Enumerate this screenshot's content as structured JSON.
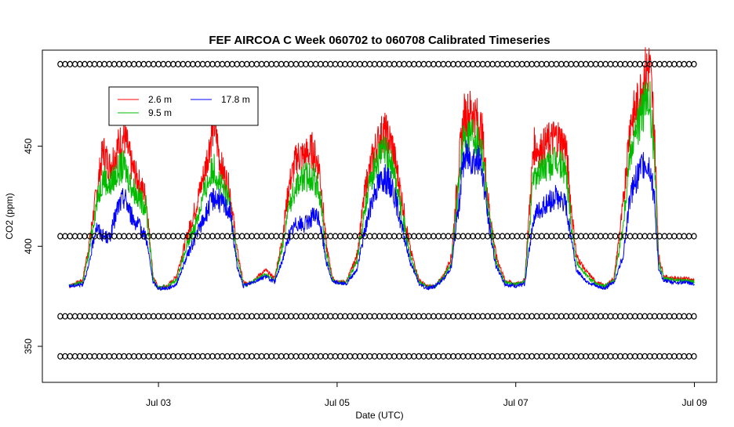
{
  "chart_data": {
    "type": "line",
    "title": "FEF AIRCOA C  Week 060702 to 060708  Calibrated Timeseries",
    "xlabel": "Date (UTC)",
    "ylabel": "CO2 (ppm)",
    "x_ticks": [
      "Jul 03",
      "Jul 05",
      "Jul 07",
      "Jul 09"
    ],
    "x_tick_days": [
      1,
      3,
      5,
      7
    ],
    "xlim_days": [
      -0.3,
      7.25
    ],
    "y_ticks": [
      350,
      400,
      450
    ],
    "ylim": [
      332,
      498
    ],
    "legend": {
      "placement": "top-left",
      "entries": [
        {
          "label": "2.6 m",
          "color": "#ff0000"
        },
        {
          "label": "9.5 m",
          "color": "#00bb00"
        },
        {
          "label": "17.8 m",
          "color": "#0000ff"
        }
      ]
    },
    "series": [
      {
        "name": "2.6 m",
        "color": "#ff0000",
        "day_pts": [
          [
            0.0,
            380
          ],
          [
            0.15,
            383
          ],
          [
            0.22,
            400
          ],
          [
            0.3,
            425
          ],
          [
            0.38,
            448
          ],
          [
            0.45,
            440
          ],
          [
            0.55,
            450
          ],
          [
            0.62,
            455
          ],
          [
            0.7,
            440
          ],
          [
            0.78,
            432
          ],
          [
            0.86,
            425
          ],
          [
            0.94,
            385
          ],
          [
            1.0,
            379
          ],
          [
            1.1,
            380
          ],
          [
            1.2,
            385
          ],
          [
            1.32,
            405
          ],
          [
            1.42,
            420
          ],
          [
            1.52,
            438
          ],
          [
            1.62,
            462
          ],
          [
            1.7,
            440
          ],
          [
            1.8,
            428
          ],
          [
            1.88,
            398
          ],
          [
            1.95,
            382
          ],
          [
            2.0,
            381
          ],
          [
            2.2,
            388
          ],
          [
            2.3,
            384
          ],
          [
            2.38,
            402
          ],
          [
            2.46,
            430
          ],
          [
            2.55,
            445
          ],
          [
            2.63,
            445
          ],
          [
            2.72,
            448
          ],
          [
            2.8,
            440
          ],
          [
            2.88,
            400
          ],
          [
            2.95,
            384
          ],
          [
            3.0,
            382
          ],
          [
            3.1,
            382
          ],
          [
            3.22,
            395
          ],
          [
            3.32,
            430
          ],
          [
            3.42,
            448
          ],
          [
            3.52,
            458
          ],
          [
            3.62,
            450
          ],
          [
            3.72,
            425
          ],
          [
            3.82,
            398
          ],
          [
            3.92,
            383
          ],
          [
            4.0,
            380
          ],
          [
            4.1,
            380
          ],
          [
            4.2,
            386
          ],
          [
            4.28,
            395
          ],
          [
            4.36,
            440
          ],
          [
            4.42,
            465
          ],
          [
            4.52,
            468
          ],
          [
            4.62,
            458
          ],
          [
            4.7,
            420
          ],
          [
            4.78,
            395
          ],
          [
            4.88,
            383
          ],
          [
            5.0,
            381
          ],
          [
            5.1,
            383
          ],
          [
            5.2,
            450
          ],
          [
            5.28,
            448
          ],
          [
            5.36,
            452
          ],
          [
            5.46,
            455
          ],
          [
            5.56,
            450
          ],
          [
            5.62,
            420
          ],
          [
            5.68,
            395
          ],
          [
            5.78,
            388
          ],
          [
            5.9,
            382
          ],
          [
            6.0,
            380
          ],
          [
            6.1,
            384
          ],
          [
            6.2,
            420
          ],
          [
            6.28,
            462
          ],
          [
            6.36,
            470
          ],
          [
            6.44,
            485
          ],
          [
            6.5,
            490
          ],
          [
            6.55,
            460
          ],
          [
            6.6,
            395
          ],
          [
            6.66,
            385
          ],
          [
            6.75,
            384
          ],
          [
            6.9,
            384
          ],
          [
            7.0,
            383
          ]
        ]
      },
      {
        "name": "9.5 m",
        "color": "#00bb00",
        "day_pts": [
          [
            0.0,
            380
          ],
          [
            0.15,
            382
          ],
          [
            0.22,
            396
          ],
          [
            0.3,
            420
          ],
          [
            0.38,
            435
          ],
          [
            0.45,
            430
          ],
          [
            0.55,
            438
          ],
          [
            0.62,
            440
          ],
          [
            0.7,
            430
          ],
          [
            0.78,
            424
          ],
          [
            0.86,
            420
          ],
          [
            0.94,
            384
          ],
          [
            1.0,
            379
          ],
          [
            1.1,
            380
          ],
          [
            1.2,
            383
          ],
          [
            1.32,
            400
          ],
          [
            1.42,
            412
          ],
          [
            1.52,
            428
          ],
          [
            1.62,
            440
          ],
          [
            1.7,
            430
          ],
          [
            1.8,
            422
          ],
          [
            1.88,
            394
          ],
          [
            1.95,
            381
          ],
          [
            2.0,
            381
          ],
          [
            2.2,
            386
          ],
          [
            2.3,
            383
          ],
          [
            2.38,
            398
          ],
          [
            2.46,
            420
          ],
          [
            2.55,
            432
          ],
          [
            2.63,
            434
          ],
          [
            2.72,
            436
          ],
          [
            2.8,
            428
          ],
          [
            2.88,
            396
          ],
          [
            2.95,
            383
          ],
          [
            3.0,
            382
          ],
          [
            3.1,
            382
          ],
          [
            3.22,
            392
          ],
          [
            3.32,
            422
          ],
          [
            3.42,
            440
          ],
          [
            3.52,
            448
          ],
          [
            3.62,
            440
          ],
          [
            3.72,
            418
          ],
          [
            3.82,
            395
          ],
          [
            3.92,
            382
          ],
          [
            4.0,
            380
          ],
          [
            4.1,
            380
          ],
          [
            4.2,
            385
          ],
          [
            4.28,
            392
          ],
          [
            4.36,
            430
          ],
          [
            4.42,
            455
          ],
          [
            4.52,
            458
          ],
          [
            4.62,
            450
          ],
          [
            4.7,
            415
          ],
          [
            4.78,
            392
          ],
          [
            4.88,
            382
          ],
          [
            5.0,
            381
          ],
          [
            5.1,
            382
          ],
          [
            5.2,
            435
          ],
          [
            5.28,
            438
          ],
          [
            5.36,
            440
          ],
          [
            5.46,
            442
          ],
          [
            5.56,
            438
          ],
          [
            5.62,
            412
          ],
          [
            5.68,
            392
          ],
          [
            5.78,
            386
          ],
          [
            5.9,
            381
          ],
          [
            6.0,
            380
          ],
          [
            6.1,
            383
          ],
          [
            6.2,
            410
          ],
          [
            6.28,
            448
          ],
          [
            6.36,
            460
          ],
          [
            6.44,
            470
          ],
          [
            6.5,
            472
          ],
          [
            6.55,
            445
          ],
          [
            6.6,
            392
          ],
          [
            6.66,
            384
          ],
          [
            6.75,
            383
          ],
          [
            6.9,
            383
          ],
          [
            7.0,
            382
          ]
        ]
      },
      {
        "name": "17.8 m",
        "color": "#0000ff",
        "day_pts": [
          [
            0.0,
            380
          ],
          [
            0.15,
            381
          ],
          [
            0.22,
            390
          ],
          [
            0.3,
            410
          ],
          [
            0.38,
            405
          ],
          [
            0.45,
            404
          ],
          [
            0.55,
            420
          ],
          [
            0.62,
            425
          ],
          [
            0.7,
            415
          ],
          [
            0.78,
            410
          ],
          [
            0.86,
            405
          ],
          [
            0.94,
            382
          ],
          [
            1.0,
            379
          ],
          [
            1.1,
            379
          ],
          [
            1.2,
            381
          ],
          [
            1.32,
            395
          ],
          [
            1.42,
            405
          ],
          [
            1.52,
            415
          ],
          [
            1.62,
            425
          ],
          [
            1.7,
            422
          ],
          [
            1.8,
            418
          ],
          [
            1.88,
            390
          ],
          [
            1.95,
            380
          ],
          [
            2.0,
            381
          ],
          [
            2.2,
            385
          ],
          [
            2.3,
            382
          ],
          [
            2.38,
            392
          ],
          [
            2.46,
            405
          ],
          [
            2.55,
            412
          ],
          [
            2.63,
            410
          ],
          [
            2.72,
            415
          ],
          [
            2.8,
            414
          ],
          [
            2.88,
            392
          ],
          [
            2.95,
            382
          ],
          [
            3.0,
            382
          ],
          [
            3.1,
            381
          ],
          [
            3.22,
            388
          ],
          [
            3.32,
            410
          ],
          [
            3.42,
            428
          ],
          [
            3.52,
            435
          ],
          [
            3.62,
            430
          ],
          [
            3.72,
            410
          ],
          [
            3.82,
            392
          ],
          [
            3.92,
            381
          ],
          [
            4.0,
            379
          ],
          [
            4.1,
            380
          ],
          [
            4.2,
            384
          ],
          [
            4.28,
            390
          ],
          [
            4.36,
            420
          ],
          [
            4.42,
            445
          ],
          [
            4.52,
            445
          ],
          [
            4.62,
            440
          ],
          [
            4.7,
            410
          ],
          [
            4.78,
            390
          ],
          [
            4.88,
            381
          ],
          [
            5.0,
            380
          ],
          [
            5.1,
            381
          ],
          [
            5.2,
            415
          ],
          [
            5.28,
            418
          ],
          [
            5.36,
            422
          ],
          [
            5.46,
            425
          ],
          [
            5.56,
            420
          ],
          [
            5.62,
            405
          ],
          [
            5.68,
            388
          ],
          [
            5.78,
            383
          ],
          [
            5.9,
            380
          ],
          [
            6.0,
            379
          ],
          [
            6.1,
            382
          ],
          [
            6.2,
            395
          ],
          [
            6.28,
            425
          ],
          [
            6.36,
            435
          ],
          [
            6.44,
            442
          ],
          [
            6.5,
            440
          ],
          [
            6.55,
            425
          ],
          [
            6.6,
            388
          ],
          [
            6.66,
            383
          ],
          [
            6.75,
            382
          ],
          [
            6.9,
            382
          ],
          [
            7.0,
            381
          ]
        ]
      }
    ],
    "marker_rows": {
      "symbol": "o",
      "y_values": [
        345,
        365,
        405,
        491
      ],
      "x_start_day": -0.1,
      "x_end_day": 7.0,
      "step_day": 0.055
    }
  }
}
